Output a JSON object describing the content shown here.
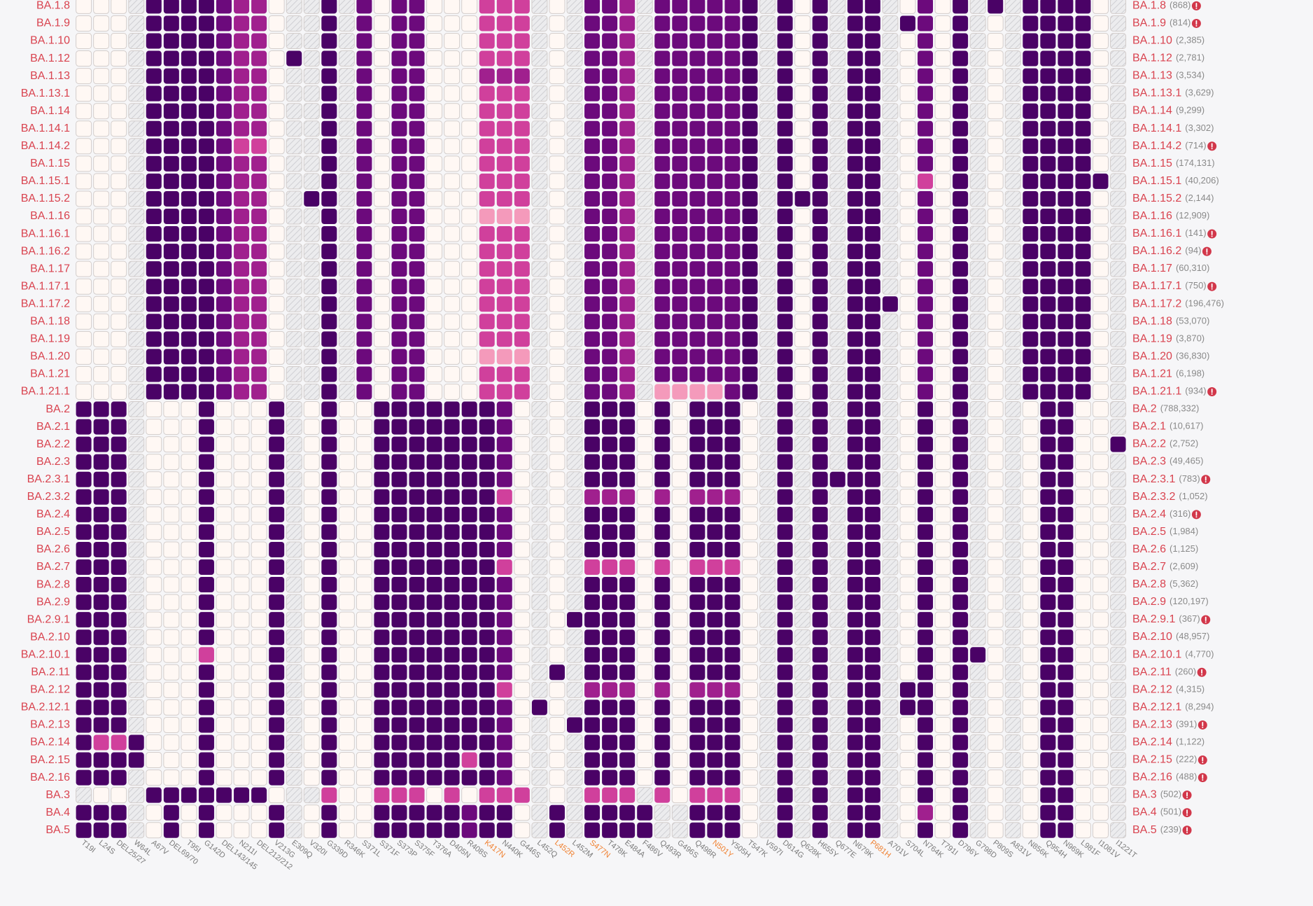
{
  "chart_data": {
    "type": "heatmap",
    "palette": {
      "h": "hatch",
      "0": "#fff8f4",
      "1": "#f49abb",
      "2": "#d0409c",
      "3": "#a0208e",
      "4": "#6c0a7c",
      "5": "#4a0266"
    },
    "label_color": "#d9434f",
    "count_color": "#8a8a8a",
    "axis_color": "#7a7a7a",
    "highlight_color": "#f08030",
    "columns": [
      {
        "label": "T19I",
        "highlight": false
      },
      {
        "label": "L24S",
        "highlight": false
      },
      {
        "label": "DEL25/27",
        "highlight": false
      },
      {
        "label": "W64L",
        "highlight": false
      },
      {
        "label": "A67V",
        "highlight": false
      },
      {
        "label": "DEL69/70",
        "highlight": false
      },
      {
        "label": "T95I",
        "highlight": false
      },
      {
        "label": "G142D",
        "highlight": false
      },
      {
        "label": "DEL143/145",
        "highlight": false
      },
      {
        "label": "N211I",
        "highlight": false
      },
      {
        "label": "DEL212/212",
        "highlight": false
      },
      {
        "label": "V213G",
        "highlight": false
      },
      {
        "label": "E309Q",
        "highlight": false
      },
      {
        "label": "V320I",
        "highlight": false
      },
      {
        "label": "G339D",
        "highlight": false
      },
      {
        "label": "R346K",
        "highlight": false
      },
      {
        "label": "S371L",
        "highlight": false
      },
      {
        "label": "S371F",
        "highlight": false
      },
      {
        "label": "S373P",
        "highlight": false
      },
      {
        "label": "S375F",
        "highlight": false
      },
      {
        "label": "T376A",
        "highlight": false
      },
      {
        "label": "D405N",
        "highlight": false
      },
      {
        "label": "R408S",
        "highlight": false
      },
      {
        "label": "K417N",
        "highlight": true
      },
      {
        "label": "N440K",
        "highlight": false
      },
      {
        "label": "G446S",
        "highlight": false
      },
      {
        "label": "L452Q",
        "highlight": false
      },
      {
        "label": "L452R",
        "highlight": true
      },
      {
        "label": "L452M",
        "highlight": false
      },
      {
        "label": "S477N",
        "highlight": true
      },
      {
        "label": "T478K",
        "highlight": false
      },
      {
        "label": "E484A",
        "highlight": false
      },
      {
        "label": "F486V",
        "highlight": false
      },
      {
        "label": "Q493R",
        "highlight": false
      },
      {
        "label": "G496S",
        "highlight": false
      },
      {
        "label": "Q498R",
        "highlight": false
      },
      {
        "label": "N501Y",
        "highlight": true
      },
      {
        "label": "Y505H",
        "highlight": false
      },
      {
        "label": "T547K",
        "highlight": false
      },
      {
        "label": "V597I",
        "highlight": false
      },
      {
        "label": "D614G",
        "highlight": false
      },
      {
        "label": "Q628K",
        "highlight": false
      },
      {
        "label": "H655Y",
        "highlight": false
      },
      {
        "label": "Q677E",
        "highlight": false
      },
      {
        "label": "N679K",
        "highlight": false
      },
      {
        "label": "P681H",
        "highlight": true
      },
      {
        "label": "A701V",
        "highlight": false
      },
      {
        "label": "S704L",
        "highlight": false
      },
      {
        "label": "N764K",
        "highlight": false
      },
      {
        "label": "T791I",
        "highlight": false
      },
      {
        "label": "D796Y",
        "highlight": false
      },
      {
        "label": "G798D",
        "highlight": false
      },
      {
        "label": "P809S",
        "highlight": false
      },
      {
        "label": "A831V",
        "highlight": false
      },
      {
        "label": "N856K",
        "highlight": false
      },
      {
        "label": "Q954H",
        "highlight": false
      },
      {
        "label": "N969K",
        "highlight": false
      },
      {
        "label": "L981F",
        "highlight": false
      },
      {
        "label": "I1081V",
        "highlight": false
      },
      {
        "label": "I1221T",
        "highlight": false
      }
    ],
    "rows": [
      {
        "name": "BA.1.8",
        "count": "(868)",
        "flag": true,
        "cells": "000h55554330hh5h4044000222h0h443h444445h505h55h0405h5h55550h"
      },
      {
        "name": "BA.1.9",
        "count": "(814)",
        "flag": true,
        "cells": "000h55554330hh5h4044000222h0h443h444445h505h55h5405h0h55550h"
      },
      {
        "name": "BA.1.10",
        "count": "(2,385)",
        "flag": false,
        "cells": "000h55554330hh5h4044000222h0h443h444445h505h55h0405h0h55550h"
      },
      {
        "name": "BA.1.12",
        "count": "(2,781)",
        "flag": false,
        "cells": "000h555543305h5h4044000222h0h443h444445h505h55h0405h0h55550h"
      },
      {
        "name": "BA.1.13",
        "count": "(3,534)",
        "flag": false,
        "cells": "000h55554330hh5h4044000333h0h443h444445h505h55h0405h0h55550h"
      },
      {
        "name": "BA.1.13.1",
        "count": "(3,629)",
        "flag": false,
        "cells": "000h55554330hh5h4044000222h0h443h444445h505h55h0405h0h55550h"
      },
      {
        "name": "BA.1.14",
        "count": "(9,299)",
        "flag": false,
        "cells": "000h55554330hh5h4044000222h0h443h444445h505h55h0405h0h55550h"
      },
      {
        "name": "BA.1.14.1",
        "count": "(3,302)",
        "flag": false,
        "cells": "000h55554330hh5h4044000222h0h443h444445h505h55h0405h0h55550h"
      },
      {
        "name": "BA.1.14.2",
        "count": "(714)",
        "flag": true,
        "cells": "000h55554220hh5h4044000222h0h443h444445h505h55h0405h0h55550h"
      },
      {
        "name": "BA.1.15",
        "count": "(174,131)",
        "flag": false,
        "cells": "000h55554330hh5h4044000222h0h443h444445h505h55h0405h0h55550h"
      },
      {
        "name": "BA.1.15.1",
        "count": "(40,206)",
        "flag": false,
        "cells": "000h55554330hh5h4044000222h0h443h444445h505h55h0205h0h55555h"
      },
      {
        "name": "BA.1.15.2",
        "count": "(2,144)",
        "flag": false,
        "cells": "000h55554330h55h4044000222h0h443h444445h555h55h0405h0h55550h"
      },
      {
        "name": "BA.1.16",
        "count": "(12,909)",
        "flag": false,
        "cells": "000h55554330hh5h4044000111h0h443h444445h505h55h0405h0h55550h"
      },
      {
        "name": "BA.1.16.1",
        "count": "(141)",
        "flag": true,
        "cells": "000h55554330hh5h4044000222h0h443h444445h505h55h0405h0h55550h"
      },
      {
        "name": "BA.1.16.2",
        "count": "(94)",
        "flag": true,
        "cells": "000h55554330hh5h4044000222h0h443h444445h505h55h0405h0h55550h"
      },
      {
        "name": "BA.1.17",
        "count": "(60,310)",
        "flag": false,
        "cells": "000h55554330hh5h4044000222h0h443h444445h505h55h0405h0h55550h"
      },
      {
        "name": "BA.1.17.1",
        "count": "(750)",
        "flag": true,
        "cells": "000h55554330hh5h4044000222h0h443h444445h505h55h0405h0h55550h"
      },
      {
        "name": "BA.1.17.2",
        "count": "(196,476)",
        "flag": false,
        "cells": "000h55554330hh5h4044000222h0h443h444445h505h5550405h0h55550h"
      },
      {
        "name": "BA.1.18",
        "count": "(53,070)",
        "flag": false,
        "cells": "000h55554330hh5h4044000222h0h443h444445h505h55h0405h0h55550h"
      },
      {
        "name": "BA.1.19",
        "count": "(3,870)",
        "flag": false,
        "cells": "000h55554330hh5h4044000222h0h443h444445h505h55h0405h0h55550h"
      },
      {
        "name": "BA.1.20",
        "count": "(36,830)",
        "flag": false,
        "cells": "000h55554330hh5h4044000111h0h443h444445h505h55h0405h0h55550h"
      },
      {
        "name": "BA.1.21",
        "count": "(6,198)",
        "flag": false,
        "cells": "000h55554330hh5h4044000222h0h443h444445h505h55h0405h0h55550h"
      },
      {
        "name": "BA.1.21.1",
        "count": "(934)",
        "flag": true,
        "cells": "000h55554330hh5h4044000222h0h443h111145h505h55h0405h0h55550h"
      },
      {
        "name": "BA.2",
        "count": "(788,332)",
        "flag": false,
        "cells": "555h00050005h0500555555540h0h5550505550h5h5h55h0505h0h05500h"
      },
      {
        "name": "BA.2.1",
        "count": "(10,617)",
        "flag": false,
        "cells": "555h00050005h0500555555540h0h5550505550h5h5h55h0505h0h05500h"
      },
      {
        "name": "BA.2.2",
        "count": "(2,752)",
        "flag": false,
        "cells": "555h00050005h0500555555540h0h5550505550h5h5h55h0505h0h055005"
      },
      {
        "name": "BA.2.3",
        "count": "(49,465)",
        "flag": false,
        "cells": "555h00050005h0500555555540h0h5550505550h5h5h55h0505h0h05500h"
      },
      {
        "name": "BA.2.3.1",
        "count": "(783)",
        "flag": true,
        "cells": "555h00050005h0500555555540h0h5550505550h5h5555h0505h0h05500h"
      },
      {
        "name": "BA.2.3.2",
        "count": "(1,052)",
        "flag": false,
        "cells": "555h00050005h0500555555520h0h3330303330h5h5h55h0505h0h05500h"
      },
      {
        "name": "BA.2.4",
        "count": "(316)",
        "flag": true,
        "cells": "555h00050005h0500555555540h0h5550505550h5h5h55h0505h0h05500h"
      },
      {
        "name": "BA.2.5",
        "count": "(1,984)",
        "flag": false,
        "cells": "555h00050005h0500555555540h0h5550505550h5h5h55h0505h0h05500h"
      },
      {
        "name": "BA.2.6",
        "count": "(1,125)",
        "flag": false,
        "cells": "555h00050005h0500555555540h0h5550505550h5h5h55h0505h0h05500h"
      },
      {
        "name": "BA.2.7",
        "count": "(2,609)",
        "flag": false,
        "cells": "555h00050005h0500555555520h0h2220202220h5h5h55h0505h0h05500h"
      },
      {
        "name": "BA.2.8",
        "count": "(5,362)",
        "flag": false,
        "cells": "555h00050005h0500555555540h0h5550505550h5h5h55h0505h0h05500h"
      },
      {
        "name": "BA.2.9",
        "count": "(120,197)",
        "flag": false,
        "cells": "555h00050005h0500555555540h0h5550505550h5h5h55h0505h0h05500h"
      },
      {
        "name": "BA.2.9.1",
        "count": "(367)",
        "flag": true,
        "cells": "555h00050005h0500555555540h055550505550h5h5h55h0505h0h05500h"
      },
      {
        "name": "BA.2.10",
        "count": "(48,957)",
        "flag": false,
        "cells": "555h00050005h0500555555540h0h5550505550h5h5h55h0505h0h05500h"
      },
      {
        "name": "BA.2.10.1",
        "count": "(4,770)",
        "flag": false,
        "cells": "555h00020005h0500555555540h0h5550505550h5h5h55h050550h05500h"
      },
      {
        "name": "BA.2.11",
        "count": "(260)",
        "flag": true,
        "cells": "555h00050005h0500555555540h5h5550505550h5h5h55h0505h0h05500h"
      },
      {
        "name": "BA.2.12",
        "count": "(4,315)",
        "flag": false,
        "cells": "555h00050005h0500555555520h0h3330303330h5h5h55h5505h0h05500h"
      },
      {
        "name": "BA.2.12.1",
        "count": "(8,294)",
        "flag": false,
        "cells": "555h00050005h050055555554050h5550505550h5h5h55h5505h0h05500h"
      },
      {
        "name": "BA.2.13",
        "count": "(391)",
        "flag": true,
        "cells": "555h00050005h0500555555540h055550505550h5h5h55h0505h0h05500h"
      },
      {
        "name": "BA.2.14",
        "count": "(1,122)",
        "flag": false,
        "cells": "522500050005h0500555555540h0h5550505550h5h5h55h0505h0h05500h"
      },
      {
        "name": "BA.2.15",
        "count": "(222)",
        "flag": true,
        "cells": "555500050005h0500555552540h0h5550505550h5h5h55h0505h0h05500h"
      },
      {
        "name": "BA.2.16",
        "count": "(488)",
        "flag": true,
        "cells": "555h00050005h0500555555540h0h5550505550h5h5h55h0505h0h05500h"
      },
      {
        "name": "BA.3",
        "count": "(502)",
        "flag": true,
        "cells": "h00h55555550hh200222020222h0h222h202220h5h5h55h0505h0h05500h"
      },
      {
        "name": "BA.4",
        "count": "(501)",
        "flag": true,
        "cells": "555h05050005h0500555554550h5h5555hh5550h5h5h55h0305h0h05500h"
      },
      {
        "name": "BA.5",
        "count": "(239)",
        "flag": true,
        "cells": "555h05050005h0500555554550h5h5555hh5550h5h5h55h0505h0h05500h"
      }
    ]
  }
}
